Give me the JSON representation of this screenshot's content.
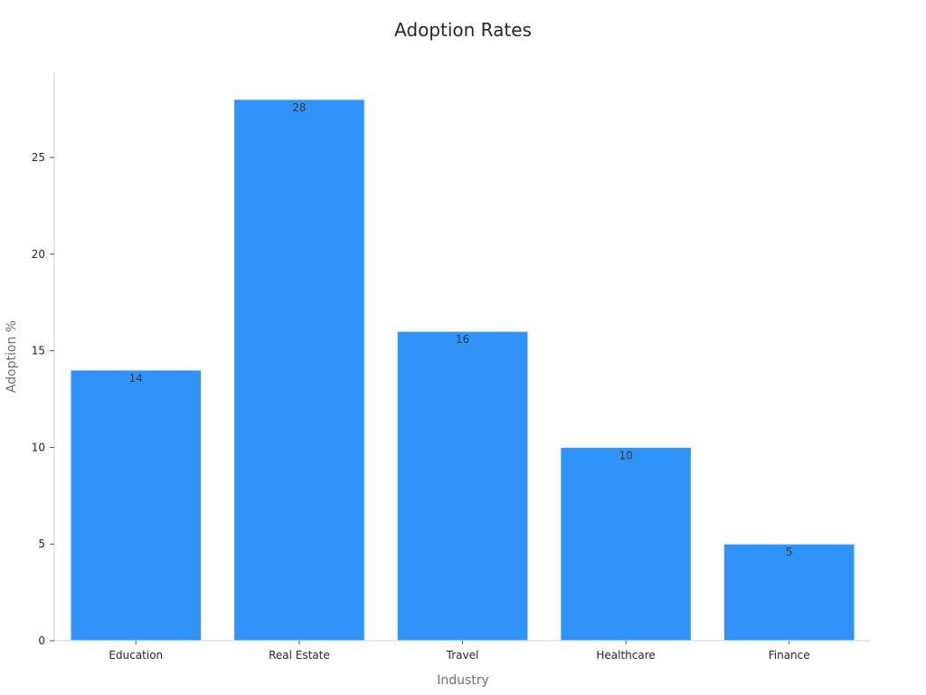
{
  "chart_data": {
    "type": "bar",
    "title": "Adoption Rates",
    "xlabel": "Industry",
    "ylabel": "Adoption %",
    "categories": [
      "Education",
      "Real Estate",
      "Travel",
      "Healthcare",
      "Finance"
    ],
    "values": [
      14,
      28,
      16,
      10,
      5
    ],
    "ylim": [
      0,
      29.4
    ],
    "yticks": [
      0,
      5,
      10,
      15,
      20,
      25
    ],
    "data_labels": [
      "14",
      "28",
      "16",
      "10",
      "5"
    ],
    "bar_color": "#2f93f9",
    "grid": false,
    "legend": "none"
  }
}
